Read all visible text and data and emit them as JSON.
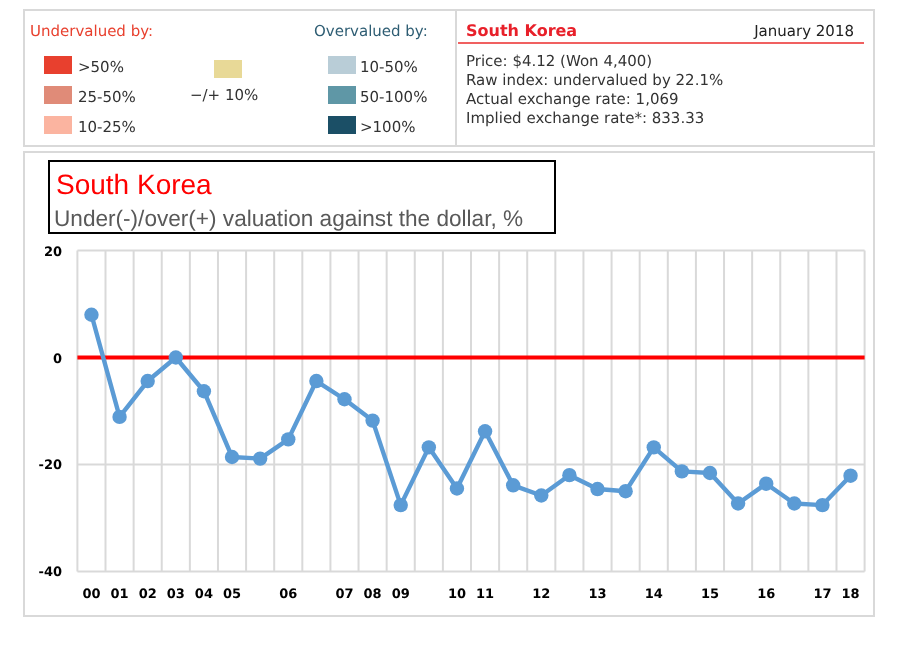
{
  "chart_data": {
    "type": "line",
    "title": "South Korea",
    "subtitle": "Under(-)/over(+) valuation against the dollar, %",
    "categories": [
      "00",
      "01",
      "02",
      "03",
      "04",
      "05",
      null,
      "06",
      null,
      "07",
      "08",
      "09",
      null,
      "10",
      "11",
      null,
      "12",
      null,
      "13",
      null,
      "14",
      null,
      "15",
      null,
      "16",
      null,
      "17",
      "18"
    ],
    "series": [
      {
        "color": "#5b9bd5",
        "values": [
          8,
          -11.1,
          -4.4,
          0,
          -6.3,
          -18.6,
          -18.9,
          -15.3,
          -4.4,
          -7.8,
          -11.8,
          -27.6,
          -16.8,
          -24.5,
          -13.8,
          -23.9,
          -25.8,
          -22,
          -24.6,
          -25,
          -16.8,
          -21.3,
          -21.6,
          -27.3,
          -23.6,
          -27.3,
          -27.6,
          -22.1
        ]
      }
    ],
    "ylim": [
      -40,
      20
    ],
    "yticks": [
      -40,
      -20,
      0,
      20
    ],
    "grid": true,
    "marker": "circle",
    "ref_lines": [
      {
        "axis": "y",
        "value": 0,
        "color": "#ff0000"
      }
    ],
    "annotations": [
      "Undervalued by:",
      ">50%",
      "25-50%",
      "10-25%",
      "−/+ 10%",
      "Overvalued by:",
      "10-50%",
      "50-100%",
      ">100%",
      "South Korea",
      "January 2018",
      "Price: $4.12 (Won 4,400)",
      "Raw index: undervalued by 22.1%",
      "Actual exchange rate: 1,069",
      "Implied exchange rate*: 833.33"
    ]
  }
}
